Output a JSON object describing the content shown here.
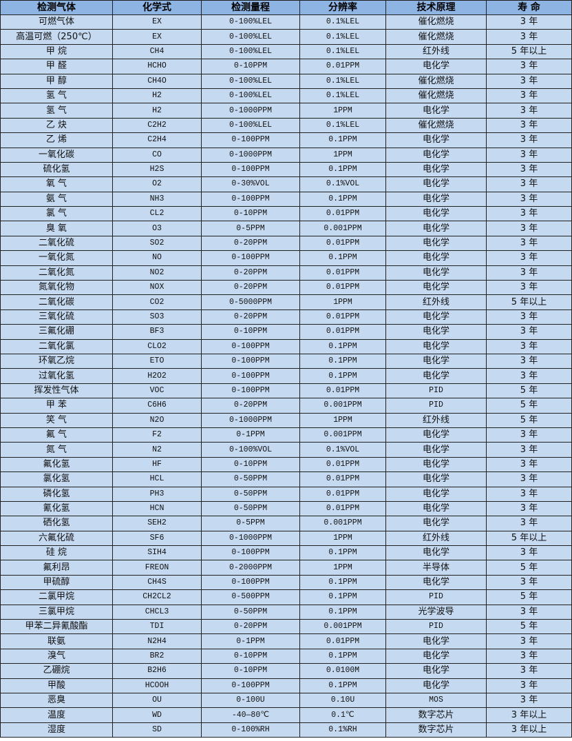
{
  "colors": {
    "header_bg": "#8DB4E2",
    "row_bg": "#C5D9F1",
    "border": "#1f1f1f"
  },
  "headers": [
    "检测气体",
    "化学式",
    "检测量程",
    "分辨率",
    "技术原理",
    "寿 命"
  ],
  "rows": [
    [
      "可燃气体",
      "EX",
      "0-100%LEL",
      "0.1%LEL",
      "催化燃烧",
      "3 年"
    ],
    [
      "高温可燃（250℃）",
      "EX",
      "0-100%LEL",
      "0.1%LEL",
      "催化燃烧",
      "3 年"
    ],
    [
      "甲 烷",
      "CH4",
      "0-100%LEL",
      "0.1%LEL",
      "红外线",
      "5 年以上"
    ],
    [
      "甲 醛",
      "HCHO",
      "0-10PPM",
      "0.01PPM",
      "电化学",
      "3 年"
    ],
    [
      "甲 醇",
      "CH4O",
      "0-100%LEL",
      "0.1%LEL",
      "催化燃烧",
      "3 年"
    ],
    [
      "氢 气",
      "H2",
      "0-100%LEL",
      "0.1%LEL",
      "催化燃烧",
      "3 年"
    ],
    [
      "氢 气",
      "H2",
      "0-1000PPM",
      "1PPM",
      "电化学",
      "3 年"
    ],
    [
      "乙 炔",
      "C2H2",
      "0-100%LEL",
      "0.1%LEL",
      "催化燃烧",
      "3 年"
    ],
    [
      "乙 烯",
      "C2H4",
      "0-100PPM",
      "0.1PPM",
      "电化学",
      "3 年"
    ],
    [
      "一氧化碳",
      "CO",
      "0-1000PPM",
      "1PPM",
      "电化学",
      "3 年"
    ],
    [
      "硫化氢",
      "H2S",
      "0-100PPM",
      "0.1PPM",
      "电化学",
      "3 年"
    ],
    [
      "氧 气",
      "O2",
      "0-30%VOL",
      "0.1%VOL",
      "电化学",
      "3 年"
    ],
    [
      "氨 气",
      "NH3",
      "0-100PPM",
      "0.1PPM",
      "电化学",
      "3 年"
    ],
    [
      "氯 气",
      "CL2",
      "0-10PPM",
      "0.01PPM",
      "电化学",
      "3 年"
    ],
    [
      "臭 氧",
      "O3",
      "0-5PPM",
      "0.001PPM",
      "电化学",
      "3 年"
    ],
    [
      "二氧化硫",
      "SO2",
      "0-20PPM",
      "0.01PPM",
      "电化学",
      "3 年"
    ],
    [
      "一氧化氮",
      "NO",
      "0-100PPM",
      "0.1PPM",
      "电化学",
      "3 年"
    ],
    [
      "二氧化氮",
      "NO2",
      "0-20PPM",
      "0.01PPM",
      "电化学",
      "3 年"
    ],
    [
      "氮氧化物",
      "NOX",
      "0-20PPM",
      "0.01PPM",
      "电化学",
      "3 年"
    ],
    [
      "二氧化碳",
      "CO2",
      "0-5000PPM",
      "1PPM",
      "红外线",
      "5 年以上"
    ],
    [
      "三氧化硫",
      "SO3",
      "0-20PPM",
      "0.01PPM",
      "电化学",
      "3 年"
    ],
    [
      "三氟化硼",
      "BF3",
      "0-10PPM",
      "0.01PPM",
      "电化学",
      "3 年"
    ],
    [
      "二氧化氯",
      "CLO2",
      "0-100PPM",
      "0.1PPM",
      "电化学",
      "3 年"
    ],
    [
      "环氧乙烷",
      "ETO",
      "0-100PPM",
      "0.1PPM",
      "电化学",
      "3 年"
    ],
    [
      "过氧化氢",
      "H2O2",
      "0-100PPM",
      "0.1PPM",
      "电化学",
      "3 年"
    ],
    [
      "挥发性气体",
      "VOC",
      "0-100PPM",
      "0.01PPM",
      "PID",
      "5 年"
    ],
    [
      "甲 苯",
      "C6H6",
      "0-20PPM",
      "0.001PPM",
      "PID",
      "5 年"
    ],
    [
      "笑 气",
      "N2O",
      "0-1000PPM",
      "1PPM",
      "红外线",
      "5 年"
    ],
    [
      "氟 气",
      "F2",
      "0-1PPM",
      "0.001PPM",
      "电化学",
      "3 年"
    ],
    [
      "氮 气",
      "N2",
      "0-100%VOL",
      "0.1%VOL",
      "电化学",
      "3 年"
    ],
    [
      "氟化氢",
      "HF",
      "0-10PPM",
      "0.01PPM",
      "电化学",
      "3 年"
    ],
    [
      "氯化氢",
      "HCL",
      "0-50PPM",
      "0.01PPM",
      "电化学",
      "3 年"
    ],
    [
      "磷化氢",
      "PH3",
      "0-50PPM",
      "0.01PPM",
      "电化学",
      "3 年"
    ],
    [
      "氰化氢",
      "HCN",
      "0-50PPM",
      "0.01PPM",
      "电化学",
      "3 年"
    ],
    [
      "硒化氢",
      "SEH2",
      "0-5PPM",
      "0.001PPM",
      "电化学",
      "3 年"
    ],
    [
      "六氟化硫",
      "SF6",
      "0-1000PPM",
      "1PPM",
      "红外线",
      "5 年以上"
    ],
    [
      "硅 烷",
      "SIH4",
      "0-100PPM",
      "0.1PPM",
      "电化学",
      "3 年"
    ],
    [
      "氟利昂",
      "FREON",
      "0-2000PPM",
      "1PPM",
      "半导体",
      "5 年"
    ],
    [
      "甲硫醇",
      "CH4S",
      "0-100PPM",
      "0.1PPM",
      "电化学",
      "3 年"
    ],
    [
      "二氯甲烷",
      "CH2CL2",
      "0-500PPM",
      "0.1PPM",
      "PID",
      "5 年"
    ],
    [
      "三氯甲烷",
      "CHCL3",
      "0-50PPM",
      "0.1PPM",
      "光学波导",
      "3 年"
    ],
    [
      "甲苯二异氰酸酯",
      "TDI",
      "0-20PPM",
      "0.001PPM",
      "PID",
      "5 年"
    ],
    [
      "联氨",
      "N2H4",
      "0-1PPM",
      "0.01PPM",
      "电化学",
      "3 年"
    ],
    [
      "溴气",
      "BR2",
      "0-10PPM",
      "0.1PPM",
      "电化学",
      "3 年"
    ],
    [
      "乙硼烷",
      "B2H6",
      "0-10PPM",
      "0.0100M",
      "电化学",
      "3 年"
    ],
    [
      "甲酸",
      "HCOOH",
      "0-100PPM",
      "0.1PPM",
      "电化学",
      "3 年"
    ],
    [
      "恶臭",
      "OU",
      "0-100U",
      "0.10U",
      "MOS",
      "3 年"
    ],
    [
      "温度",
      "WD",
      "-40—80℃",
      "0.1℃",
      "数字芯片",
      "3 年以上"
    ],
    [
      "湿度",
      "SD",
      "0-100%RH",
      "0.1%RH",
      "数字芯片",
      "3 年以上"
    ]
  ]
}
